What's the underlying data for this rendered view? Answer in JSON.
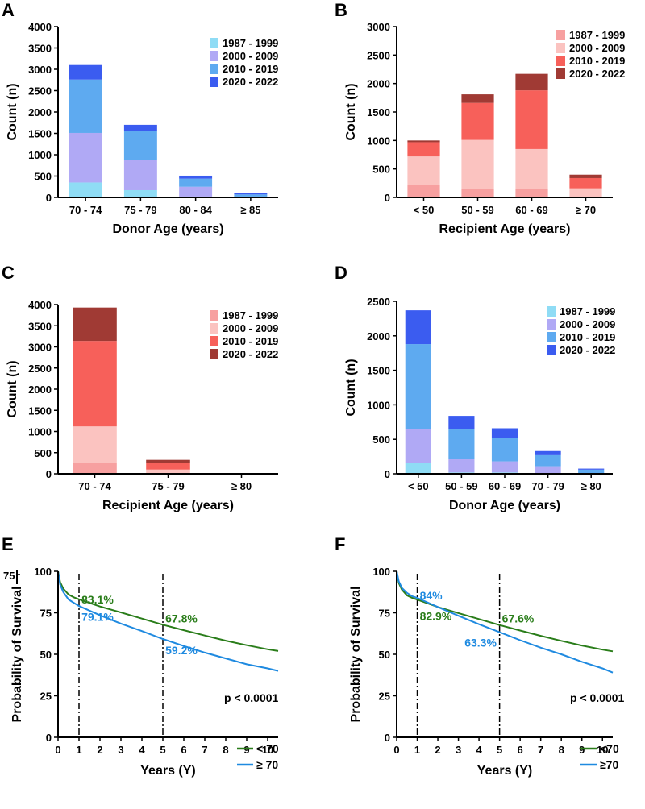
{
  "figure": {
    "panels": [
      "A",
      "B",
      "C",
      "D",
      "E",
      "F"
    ],
    "stray_label": "75"
  },
  "chart_data": [
    {
      "panel": "A",
      "type": "bar",
      "stacked": true,
      "xlabel": "Donor Age (years)",
      "ylabel": "Count (n)",
      "ylim": [
        0,
        4000
      ],
      "yticks": [
        0,
        500,
        1000,
        1500,
        2000,
        2500,
        3000,
        3500,
        4000
      ],
      "categories": [
        "70 - 74",
        "75 - 79",
        "80 - 84",
        "≥ 85"
      ],
      "legend_position": "top-right",
      "series": [
        {
          "name": "1987 - 1999",
          "color": "#8fdcf5",
          "values": [
            350,
            170,
            20,
            5
          ]
        },
        {
          "name": "2000 - 2009",
          "color": "#b0a9f5",
          "values": [
            1160,
            710,
            230,
            15
          ]
        },
        {
          "name": "2010 - 2019",
          "color": "#5eaaf0",
          "values": [
            1250,
            670,
            190,
            50
          ]
        },
        {
          "name": "2020 - 2022",
          "color": "#3b5cf0",
          "values": [
            340,
            150,
            70,
            40
          ]
        }
      ]
    },
    {
      "panel": "B",
      "type": "bar",
      "stacked": true,
      "xlabel": "Recipient Age (years)",
      "ylabel": "Count (n)",
      "ylim": [
        0,
        3000
      ],
      "yticks": [
        0,
        500,
        1000,
        1500,
        2000,
        2500,
        3000
      ],
      "categories": [
        "< 50",
        "50 - 59",
        "60 - 69",
        "≥ 70"
      ],
      "legend_position": "top-right",
      "series": [
        {
          "name": "1987 - 1999",
          "color": "#f7a0a0",
          "values": [
            220,
            150,
            150,
            5
          ]
        },
        {
          "name": "2000 - 2009",
          "color": "#fbc3c0",
          "values": [
            500,
            860,
            700,
            155
          ]
        },
        {
          "name": "2010 - 2019",
          "color": "#f7605a",
          "values": [
            250,
            650,
            1030,
            180
          ]
        },
        {
          "name": "2020 - 2022",
          "color": "#a03a34",
          "values": [
            30,
            150,
            290,
            60
          ]
        }
      ]
    },
    {
      "panel": "C",
      "type": "bar",
      "stacked": true,
      "xlabel": "Recipient Age (years)",
      "ylabel": "Count (n)",
      "ylim": [
        0,
        4000
      ],
      "yticks": [
        0,
        500,
        1000,
        1500,
        2000,
        2500,
        3000,
        3500,
        4000
      ],
      "categories": [
        "70 - 74",
        "75 - 79",
        "≥ 80"
      ],
      "legend_position": "top-right",
      "series": [
        {
          "name": "1987 - 1999",
          "color": "#f7a0a0",
          "values": [
            250,
            10,
            0
          ]
        },
        {
          "name": "2000 - 2009",
          "color": "#fbc3c0",
          "values": [
            870,
            90,
            0
          ]
        },
        {
          "name": "2010 - 2019",
          "color": "#f7605a",
          "values": [
            2020,
            160,
            0
          ]
        },
        {
          "name": "2020 - 2022",
          "color": "#a03a34",
          "values": [
            790,
            70,
            0
          ]
        }
      ]
    },
    {
      "panel": "D",
      "type": "bar",
      "stacked": true,
      "xlabel": "Donor Age (years)",
      "ylabel": "Count (n)",
      "ylim": [
        0,
        2500
      ],
      "yticks": [
        0,
        500,
        1000,
        1500,
        2000,
        2500
      ],
      "categories": [
        "< 50",
        "50 - 59",
        "60 - 69",
        "70 - 79",
        "≥ 80"
      ],
      "legend_position": "top-right",
      "series": [
        {
          "name": "1987 - 1999",
          "color": "#8fdcf5",
          "values": [
            160,
            20,
            20,
            10,
            0
          ]
        },
        {
          "name": "2000 - 2009",
          "color": "#b0a9f5",
          "values": [
            490,
            190,
            160,
            100,
            10
          ]
        },
        {
          "name": "2010 - 2019",
          "color": "#5eaaf0",
          "values": [
            1230,
            440,
            340,
            160,
            50
          ]
        },
        {
          "name": "2020 - 2022",
          "color": "#3b5cf0",
          "values": [
            490,
            190,
            140,
            60,
            15
          ]
        }
      ]
    },
    {
      "panel": "E",
      "type": "line",
      "xlabel": "Years (Y)",
      "ylabel": "Probability of Survival",
      "xlim": [
        0,
        10.5
      ],
      "ylim": [
        0,
        100
      ],
      "xticks": [
        0,
        1,
        2,
        3,
        4,
        5,
        6,
        7,
        8,
        9,
        10
      ],
      "yticks": [
        0,
        25,
        50,
        75,
        100
      ],
      "vlines": [
        1,
        5
      ],
      "pvalue": "p < 0.0001",
      "legend_position": "bottom-right",
      "series": [
        {
          "name": "< 70",
          "color": "#2a7d1a",
          "x": [
            0,
            0.1,
            0.25,
            0.5,
            0.75,
            1,
            2,
            3,
            4,
            5,
            6,
            7,
            8,
            9,
            10,
            10.5
          ],
          "y": [
            100,
            93.5,
            89.5,
            86,
            84.3,
            83.1,
            78.8,
            75.2,
            71.5,
            67.8,
            64.5,
            61.3,
            58.2,
            55.5,
            53,
            52
          ]
        },
        {
          "name": "≥ 70",
          "color": "#1f8ae0",
          "x": [
            0,
            0.1,
            0.25,
            0.5,
            0.75,
            1,
            2,
            3,
            4,
            5,
            6,
            7,
            8,
            9,
            10,
            10.5
          ],
          "y": [
            100,
            92,
            87.5,
            83,
            81,
            79.1,
            73.5,
            68.5,
            64,
            59.2,
            55,
            51,
            47.5,
            44,
            41.5,
            40
          ]
        }
      ],
      "annotations": [
        {
          "text": "83.1%",
          "x": 1.12,
          "y": 83.1,
          "color": "#2a7d1a"
        },
        {
          "text": "79.1%",
          "x": 1.12,
          "y": 72.5,
          "color": "#1f8ae0"
        },
        {
          "text": "67.8%",
          "x": 5.12,
          "y": 71.5,
          "color": "#2a7d1a"
        },
        {
          "text": "59.2%",
          "x": 5.12,
          "y": 52.5,
          "color": "#1f8ae0"
        }
      ]
    },
    {
      "panel": "F",
      "type": "line",
      "xlabel": "Years (Y)",
      "ylabel": "Probability of Survival",
      "xlim": [
        0,
        10.5
      ],
      "ylim": [
        0,
        100
      ],
      "xticks": [
        0,
        1,
        2,
        3,
        4,
        5,
        6,
        7,
        8,
        9,
        10
      ],
      "yticks": [
        0,
        25,
        50,
        75,
        100
      ],
      "vlines": [
        1,
        5
      ],
      "pvalue": "p < 0.0001",
      "legend_position": "bottom-right",
      "series": [
        {
          "name": "<70",
          "color": "#2a7d1a",
          "x": [
            0,
            0.1,
            0.25,
            0.5,
            0.75,
            1,
            2,
            3,
            4,
            5,
            6,
            7,
            8,
            9,
            10,
            10.5
          ],
          "y": [
            100,
            93,
            89,
            85.5,
            84,
            82.9,
            78.5,
            74.8,
            71.2,
            67.6,
            64.3,
            61.1,
            58.1,
            55.3,
            52.8,
            51.8
          ]
        },
        {
          "name": "≥70",
          "color": "#1f8ae0",
          "x": [
            0,
            0.1,
            0.25,
            0.5,
            0.75,
            1,
            2,
            3,
            4,
            5,
            6,
            7,
            8,
            9,
            10,
            10.5
          ],
          "y": [
            100,
            94,
            90,
            87,
            85,
            84,
            78.5,
            73.2,
            68.1,
            63.3,
            58.5,
            54,
            50,
            45.5,
            41.5,
            39
          ]
        }
      ],
      "annotations": [
        {
          "text": "84%",
          "x": 1.12,
          "y": 85.5,
          "color": "#1f8ae0"
        },
        {
          "text": "82.9%",
          "x": 1.12,
          "y": 73,
          "color": "#2a7d1a"
        },
        {
          "text": "63.3%",
          "x": 3.3,
          "y": 57,
          "color": "#1f8ae0"
        },
        {
          "text": "67.6%",
          "x": 5.12,
          "y": 71.5,
          "color": "#2a7d1a"
        }
      ]
    }
  ]
}
